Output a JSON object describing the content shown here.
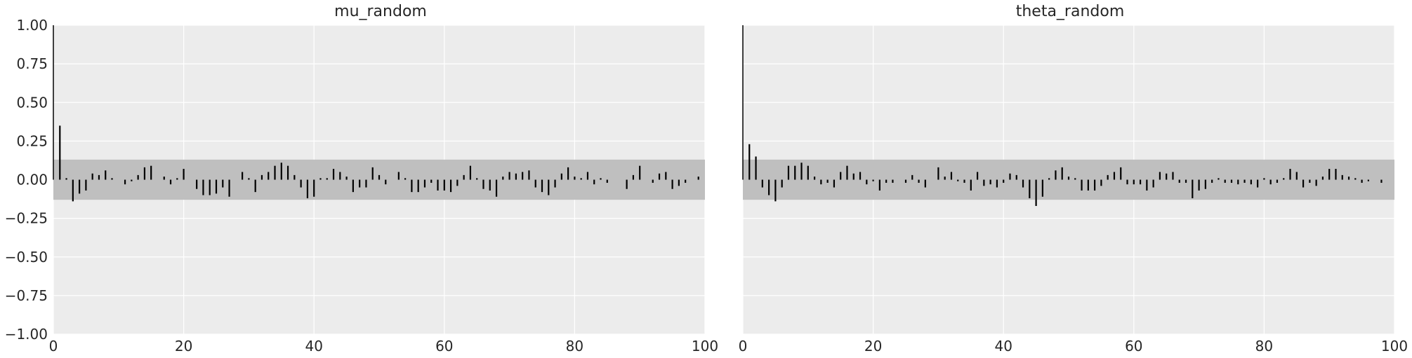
{
  "chart_data": [
    {
      "type": "bar",
      "title": "mu_random",
      "xlabel": "",
      "ylabel": "",
      "xlim": [
        0,
        100
      ],
      "ylim": [
        -1.0,
        1.0
      ],
      "grid": true,
      "confidence_band": [
        -0.13,
        0.13
      ],
      "xticks": [
        "0",
        "20",
        "40",
        "60",
        "80",
        "100"
      ],
      "yticks": [
        "1.00",
        "0.75",
        "0.50",
        "0.25",
        "0.00",
        "−0.25",
        "−0.50",
        "−0.75",
        "−1.00"
      ],
      "x": [
        0,
        1,
        2,
        3,
        4,
        5,
        6,
        7,
        8,
        9,
        10,
        11,
        12,
        13,
        14,
        15,
        16,
        17,
        18,
        19,
        20,
        21,
        22,
        23,
        24,
        25,
        26,
        27,
        28,
        29,
        30,
        31,
        32,
        33,
        34,
        35,
        36,
        37,
        38,
        39,
        40,
        41,
        42,
        43,
        44,
        45,
        46,
        47,
        48,
        49,
        50,
        51,
        52,
        53,
        54,
        55,
        56,
        57,
        58,
        59,
        60,
        61,
        62,
        63,
        64,
        65,
        66,
        67,
        68,
        69,
        70,
        71,
        72,
        73,
        74,
        75,
        76,
        77,
        78,
        79,
        80,
        81,
        82,
        83,
        84,
        85,
        86,
        87,
        88,
        89,
        90,
        91,
        92,
        93,
        94,
        95,
        96,
        97,
        98,
        99
      ],
      "values": [
        1.0,
        0.35,
        0.01,
        -0.14,
        -0.09,
        -0.07,
        0.04,
        0.03,
        0.06,
        0.01,
        0.0,
        -0.03,
        -0.01,
        0.03,
        0.08,
        0.09,
        0.0,
        0.02,
        -0.03,
        0.01,
        0.07,
        0.0,
        -0.06,
        -0.1,
        -0.1,
        -0.09,
        -0.05,
        -0.11,
        0.0,
        0.05,
        0.01,
        -0.08,
        0.03,
        0.05,
        0.09,
        0.11,
        0.09,
        0.03,
        -0.05,
        -0.12,
        -0.11,
        0.01,
        0.01,
        0.07,
        0.05,
        0.02,
        -0.08,
        -0.05,
        -0.05,
        0.08,
        0.03,
        -0.03,
        0.0,
        0.05,
        0.01,
        -0.08,
        -0.08,
        -0.05,
        -0.02,
        -0.07,
        -0.07,
        -0.08,
        -0.04,
        0.03,
        0.09,
        0.01,
        -0.06,
        -0.07,
        -0.11,
        0.02,
        0.05,
        0.04,
        0.05,
        0.06,
        -0.05,
        -0.08,
        -0.1,
        -0.05,
        0.04,
        0.08,
        0.02,
        0.01,
        0.05,
        -0.03,
        0.01,
        -0.02,
        0.0,
        0.0,
        -0.06,
        0.03,
        0.09,
        0.0,
        -0.02,
        0.04,
        0.05,
        -0.06,
        -0.04,
        -0.02,
        0.0,
        0.02
      ]
    },
    {
      "type": "bar",
      "title": "theta_random",
      "xlabel": "",
      "ylabel": "",
      "xlim": [
        0,
        100
      ],
      "ylim": [
        -1.0,
        1.0
      ],
      "grid": true,
      "confidence_band": [
        -0.13,
        0.13
      ],
      "xticks": [
        "0",
        "20",
        "40",
        "60",
        "80",
        "100"
      ],
      "x": [
        0,
        1,
        2,
        3,
        4,
        5,
        6,
        7,
        8,
        9,
        10,
        11,
        12,
        13,
        14,
        15,
        16,
        17,
        18,
        19,
        20,
        21,
        22,
        23,
        24,
        25,
        26,
        27,
        28,
        29,
        30,
        31,
        32,
        33,
        34,
        35,
        36,
        37,
        38,
        39,
        40,
        41,
        42,
        43,
        44,
        45,
        46,
        47,
        48,
        49,
        50,
        51,
        52,
        53,
        54,
        55,
        56,
        57,
        58,
        59,
        60,
        61,
        62,
        63,
        64,
        65,
        66,
        67,
        68,
        69,
        70,
        71,
        72,
        73,
        74,
        75,
        76,
        77,
        78,
        79,
        80,
        81,
        82,
        83,
        84,
        85,
        86,
        87,
        88,
        89,
        90,
        91,
        92,
        93,
        94,
        95,
        96,
        97,
        98,
        99
      ],
      "values": [
        1.0,
        0.23,
        0.15,
        -0.05,
        -0.1,
        -0.14,
        -0.05,
        0.09,
        0.09,
        0.11,
        0.09,
        0.02,
        -0.03,
        -0.02,
        -0.05,
        0.05,
        0.09,
        0.04,
        0.05,
        -0.03,
        -0.01,
        -0.07,
        -0.02,
        -0.02,
        0.0,
        -0.02,
        0.03,
        -0.02,
        -0.05,
        0.0,
        0.08,
        0.02,
        0.05,
        -0.01,
        -0.02,
        -0.07,
        0.05,
        -0.04,
        -0.03,
        -0.05,
        -0.02,
        0.04,
        0.03,
        -0.05,
        -0.12,
        -0.17,
        -0.11,
        0.01,
        0.06,
        0.08,
        0.02,
        0.01,
        -0.07,
        -0.07,
        -0.07,
        -0.04,
        0.03,
        0.05,
        0.08,
        -0.03,
        -0.03,
        -0.03,
        -0.07,
        -0.05,
        0.05,
        0.04,
        0.05,
        -0.02,
        -0.02,
        -0.12,
        -0.07,
        -0.06,
        -0.02,
        0.01,
        -0.02,
        -0.02,
        -0.03,
        -0.02,
        -0.03,
        -0.05,
        0.01,
        -0.03,
        -0.02,
        0.01,
        0.07,
        0.05,
        -0.05,
        -0.02,
        -0.04,
        0.02,
        0.07,
        0.07,
        0.03,
        0.02,
        0.01,
        -0.02,
        -0.01,
        0.0,
        -0.02,
        0.0
      ]
    }
  ]
}
